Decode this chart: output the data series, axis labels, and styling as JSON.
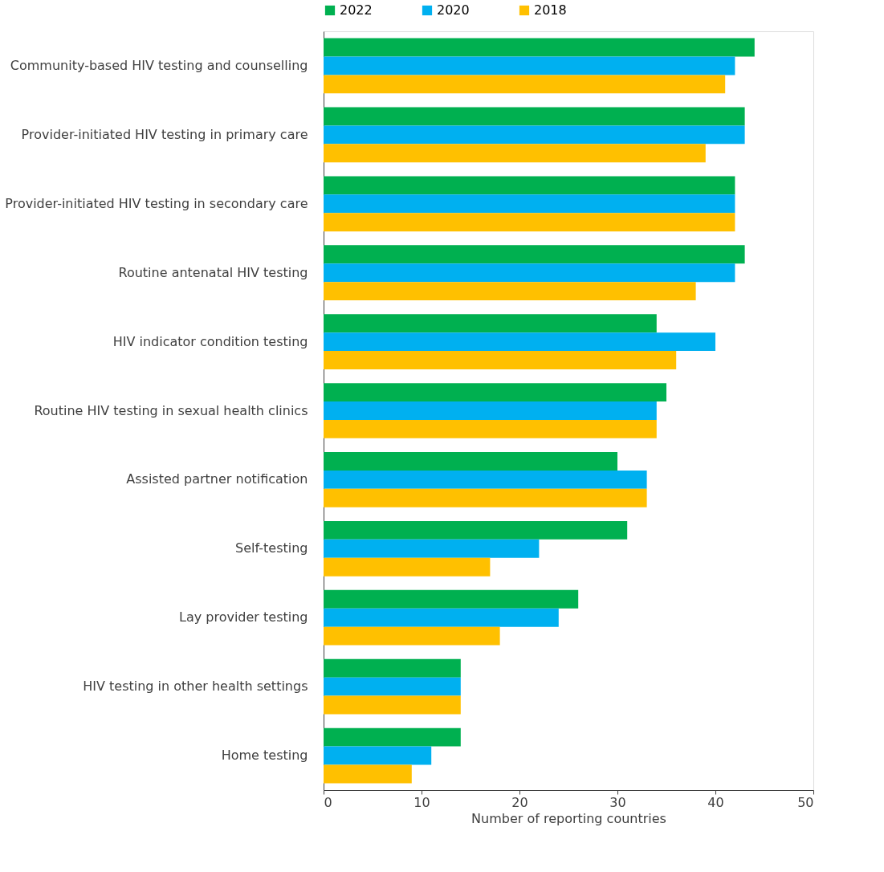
{
  "chart_data": {
    "type": "bar",
    "orientation": "horizontal",
    "xlabel": "Number of reporting countries",
    "categories": [
      "Community-based HIV testing and counselling",
      "Provider-initiated HIV testing in primary care",
      "Provider-initiated HIV testing in secondary care",
      "Routine antenatal HIV testing",
      "HIV indicator condition testing",
      "Routine HIV testing in sexual health clinics",
      "Assisted partner notification",
      "Self-testing",
      "Lay provider testing",
      "HIV testing in other health settings",
      "Home testing"
    ],
    "series": [
      {
        "name": "2022",
        "color": "#00b050",
        "values": [
          44,
          43,
          42,
          43,
          34,
          35,
          30,
          31,
          26,
          14,
          14
        ]
      },
      {
        "name": "2020",
        "color": "#00b0f0",
        "values": [
          42,
          43,
          42,
          42,
          40,
          34,
          33,
          22,
          24,
          14,
          11
        ]
      },
      {
        "name": "2018",
        "color": "#ffc000",
        "values": [
          41,
          39,
          42,
          38,
          36,
          34,
          33,
          17,
          18,
          14,
          9
        ]
      }
    ],
    "xlim": [
      0,
      50
    ],
    "xticks": [
      0,
      10,
      20,
      30,
      40,
      50
    ],
    "grid": false,
    "legend": "top"
  }
}
